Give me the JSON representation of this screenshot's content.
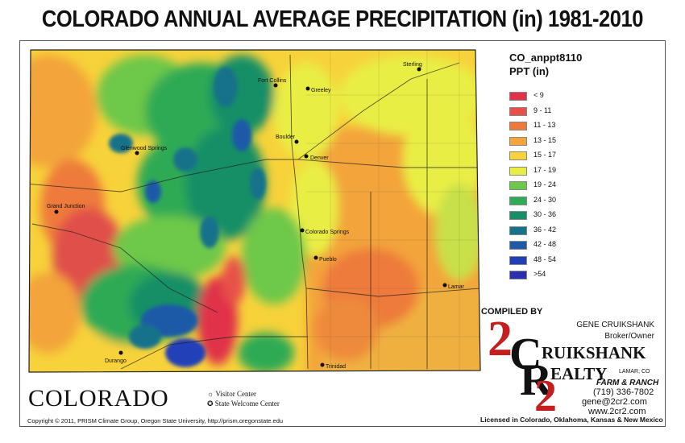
{
  "title": "COLORADO ANNUAL AVERAGE PRECIPITATION (in) 1981-2010",
  "legend": {
    "dataset": "CO_anppt8110",
    "units": "PPT (in)",
    "items": [
      {
        "label": "< 9",
        "color": "#e0304a"
      },
      {
        "label": "9 - 11",
        "color": "#e8514a"
      },
      {
        "label": "11 - 13",
        "color": "#ee7a3a"
      },
      {
        "label": "13 - 15",
        "color": "#f3a43a"
      },
      {
        "label": "15 - 17",
        "color": "#f8d23a"
      },
      {
        "label": "17 - 19",
        "color": "#e9ee45"
      },
      {
        "label": "19 - 24",
        "color": "#6ec84a"
      },
      {
        "label": "24 - 30",
        "color": "#2faa55"
      },
      {
        "label": "30 - 36",
        "color": "#178f66"
      },
      {
        "label": "36 - 42",
        "color": "#14728a"
      },
      {
        "label": "42 - 48",
        "color": "#1f5aa8"
      },
      {
        "label": "48 - 54",
        "color": "#2040b8"
      },
      {
        "label": ">54",
        "color": "#2a2fb0"
      }
    ]
  },
  "map": {
    "cities": [
      "Fort Collins",
      "Greeley",
      "Boulder",
      "Denver",
      "Colorado Springs",
      "Pueblo",
      "Grand Junction",
      "Glenwood Springs",
      "Durango",
      "Lamar",
      "Sterling",
      "Trinidad"
    ]
  },
  "logo": {
    "state": "COLORADO",
    "visitor": "Visitor Center",
    "welcome": "State Welcome Center"
  },
  "copyright": "Copyright © 2011, PRISM Climate Group, Oregon State University, http://prism.oregonstate.edu",
  "compiler": {
    "compiled_by": "COMPILED BY",
    "name": "GENE CRUIKSHANK",
    "role": "Broker/Owner",
    "brand_line1": "RUIKSHANK",
    "brand_line2": "EALTY",
    "brand_digit_top": "2",
    "brand_letter_c": "C",
    "brand_letter_r": "R",
    "brand_digit_bottom": "2",
    "location": "LAMAR, CO",
    "tagline": "FARM & RANCH",
    "phone": "(719) 336-7802",
    "email": "gene@2cr2.com",
    "web": "www.2cr2.com",
    "licensed": "Licensed in Colorado, Oklahoma, Kansas & New Mexico"
  }
}
